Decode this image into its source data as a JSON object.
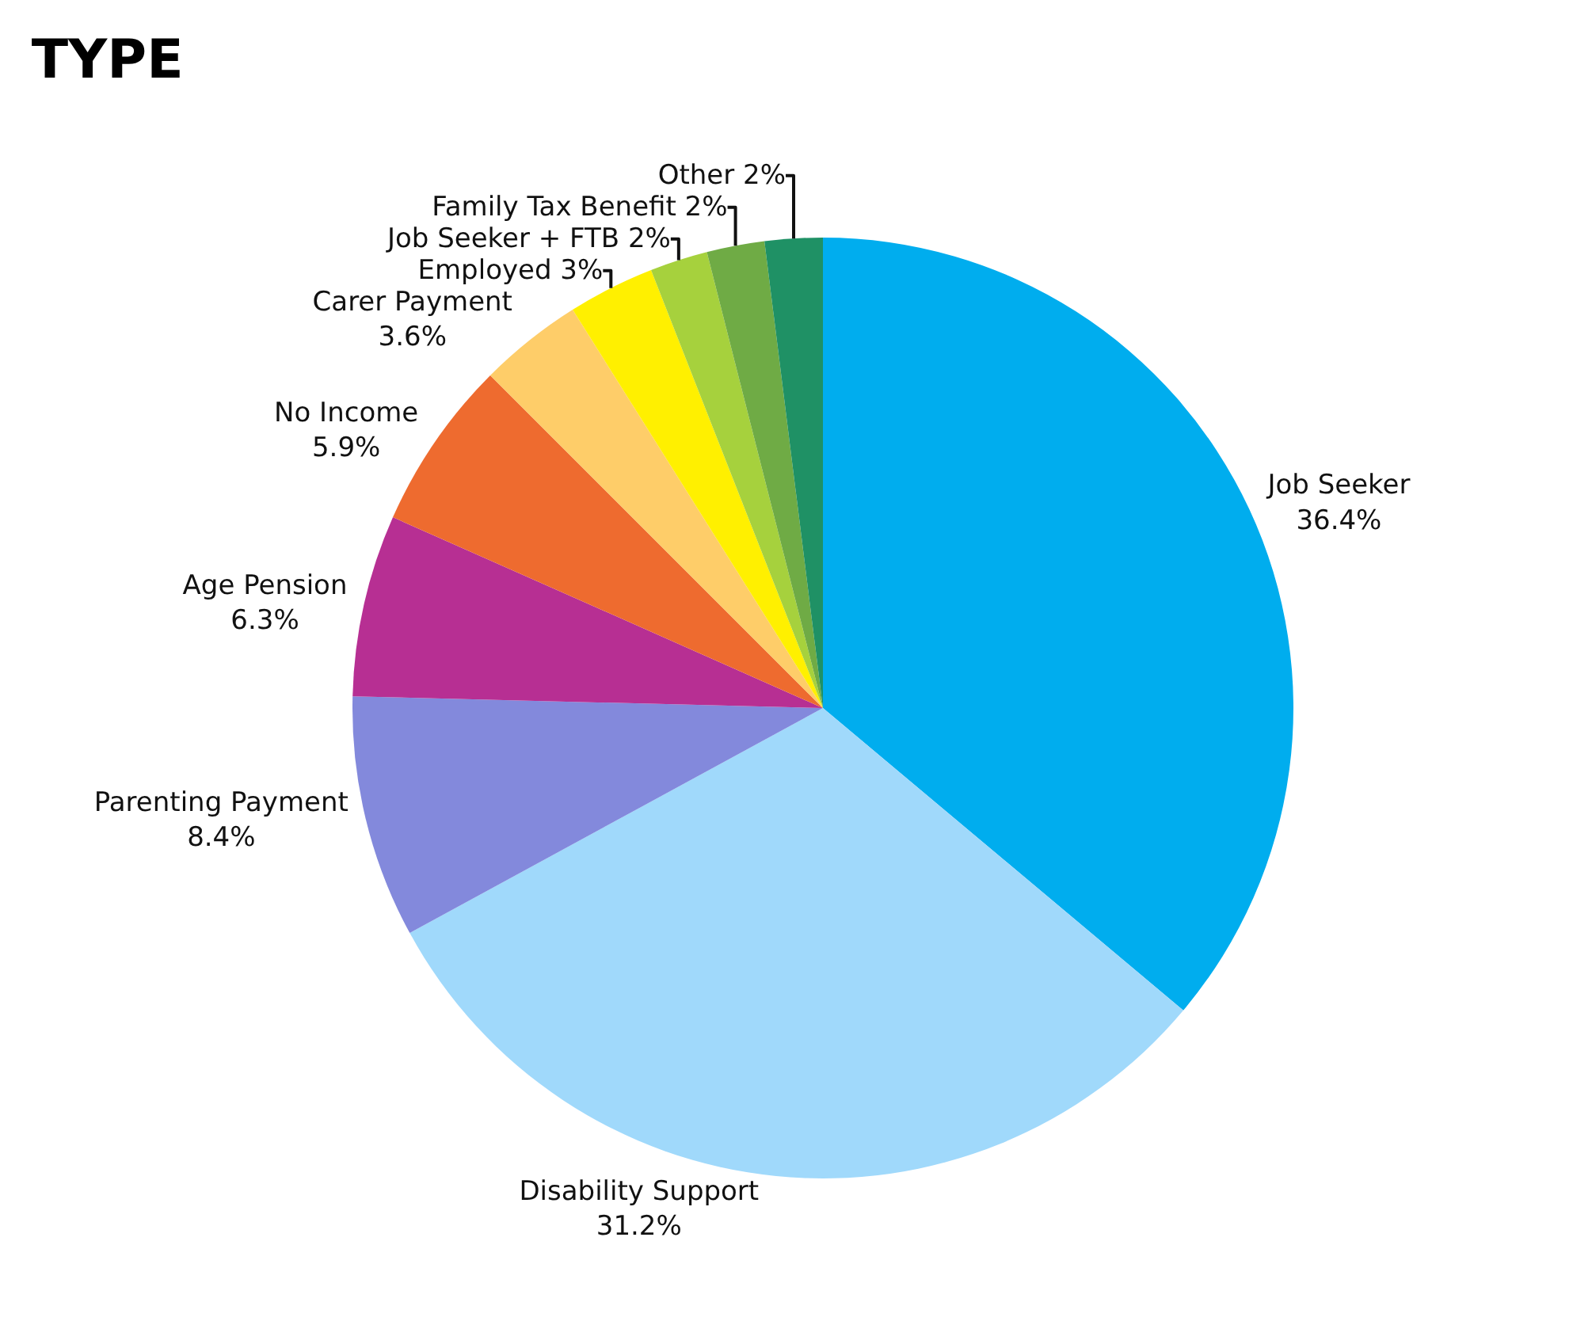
{
  "chart_data": {
    "type": "pie",
    "title": "TYPE",
    "categories": [
      "Job Seeker",
      "Disability Support",
      "Parenting Payment",
      "Age Pension",
      "No Income",
      "Carer Payment",
      "Employed",
      "Job Seeker + FTB",
      "Family Tax Benefit",
      "Other"
    ],
    "values": [
      36.4,
      31.2,
      8.4,
      6.3,
      5.9,
      3.6,
      3,
      2,
      2,
      2
    ],
    "value_labels": [
      "36.4%",
      "31.2%",
      "8.4%",
      "6.3%",
      "5.9%",
      "3.6%",
      "3%",
      "2%",
      "2%",
      "2%"
    ],
    "colors": [
      "#00adee",
      "#a0d9fb",
      "#8389dc",
      "#b72f93",
      "#ee6b2f",
      "#fecd69",
      "#fff000",
      "#a6d13d",
      "#6fab45",
      "#1f9165"
    ],
    "legend": false
  }
}
